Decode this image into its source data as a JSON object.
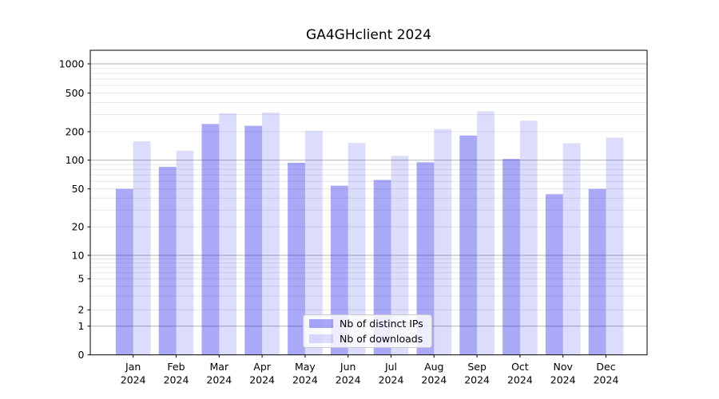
{
  "chart_data": {
    "type": "bar",
    "title": "GA4GHclient 2024",
    "categories": [
      "Jan 2024",
      "Feb 2024",
      "Mar 2024",
      "Apr 2024",
      "May 2024",
      "Jun 2024",
      "Jul 2024",
      "Aug 2024",
      "Sep 2024",
      "Oct 2024",
      "Nov 2024",
      "Dec 2024"
    ],
    "series": [
      {
        "name": "Nb of distinct IPs",
        "color": "rgba(10,10,235,0.35)",
        "values": [
          50,
          85,
          240,
          230,
          94,
          54,
          62,
          95,
          182,
          103,
          44,
          50
        ]
      },
      {
        "name": "Nb of downloads",
        "color": "rgba(10,10,235,0.14)",
        "values": [
          158,
          126,
          310,
          315,
          203,
          152,
          111,
          213,
          325,
          260,
          151,
          173
        ]
      }
    ],
    "xlabel": "",
    "ylabel": "",
    "yscale": "symlog",
    "y_ticks": [
      0,
      1,
      2,
      5,
      10,
      20,
      50,
      100,
      200,
      500,
      1000
    ],
    "ylim": [
      0,
      1400
    ],
    "grid": true,
    "legend_position": "lower center"
  },
  "colors": {
    "background": "#ffffff",
    "axis": "#000000",
    "grid_major": "#b3b3b3",
    "grid_minor": "#e8e8e8",
    "legend_bg": "rgba(255,255,255,0.8)",
    "legend_border": "#cccccc",
    "text": "#000000"
  }
}
